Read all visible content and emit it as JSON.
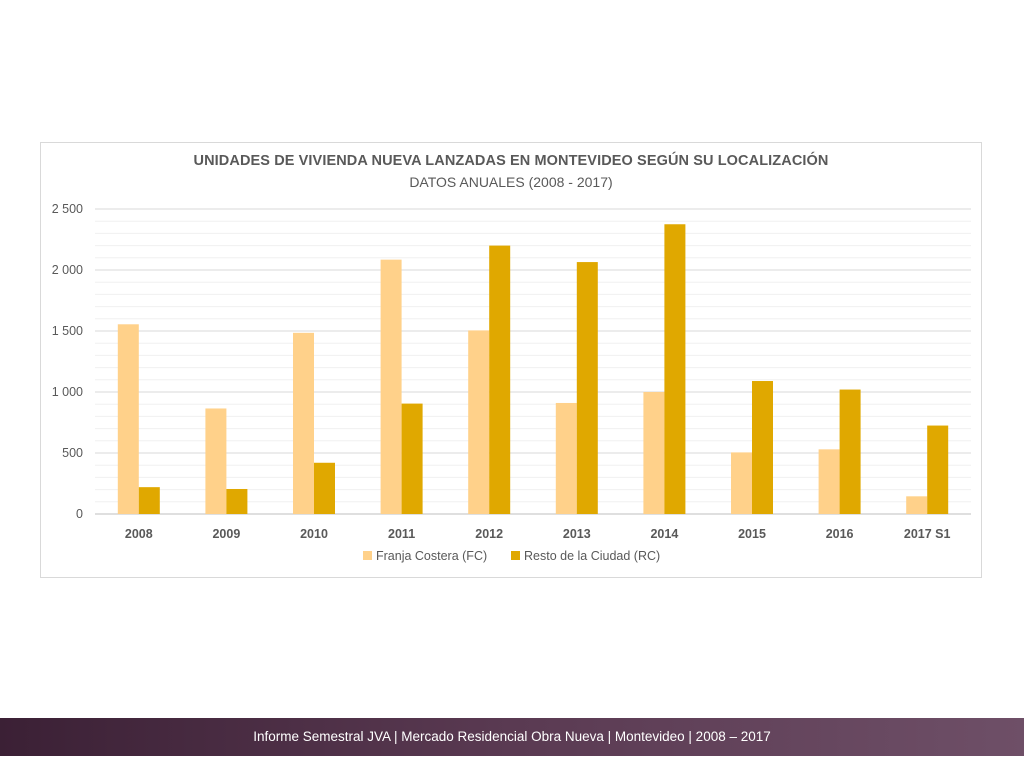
{
  "chart_data": {
    "type": "bar",
    "title": "UNIDADES DE VIVIENDA NUEVA LANZADAS EN MONTEVIDEO SEGÚN SU LOCALIZACIÓN",
    "subtitle": "DATOS ANUALES (2008 - 2017)",
    "categories": [
      "2008",
      "2009",
      "2010",
      "2011",
      "2012",
      "2013",
      "2014",
      "2015",
      "2016",
      "2017 S1"
    ],
    "series": [
      {
        "name": "Franja Costera (FC)",
        "color": "#ffd18a",
        "values": [
          1555,
          865,
          1485,
          2085,
          1505,
          910,
          1000,
          505,
          530,
          145
        ]
      },
      {
        "name": "Resto de la Ciudad (RC)",
        "color": "#e0a800",
        "values": [
          220,
          205,
          420,
          905,
          2200,
          2065,
          2375,
          1090,
          1020,
          725
        ]
      }
    ],
    "y_ticks": [
      "0",
      "500",
      "1 000",
      "1 500",
      "2 000",
      "2 500"
    ],
    "ylim": [
      0,
      2500
    ],
    "grid": true,
    "legend_position": "bottom"
  },
  "footer": {
    "text": "Informe Semestral JVA | Mercado Residencial Obra Nueva | Montevideo | 2008 – 2017"
  }
}
